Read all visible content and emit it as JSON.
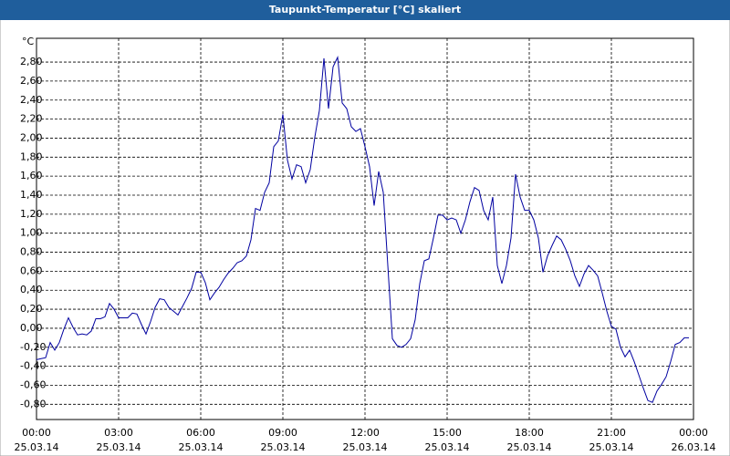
{
  "chart_data": {
    "type": "line",
    "title": "Taupunkt-Temperatur [°C] skaliert",
    "y_label": "°C",
    "x": [
      "25.03.14 00:00",
      "25.03.14 00:10",
      "25.03.14 00:20",
      "25.03.14 00:30",
      "25.03.14 00:40",
      "25.03.14 00:50",
      "25.03.14 01:00",
      "25.03.14 01:10",
      "25.03.14 01:20",
      "25.03.14 01:30",
      "25.03.14 01:40",
      "25.03.14 01:50",
      "25.03.14 02:00",
      "25.03.14 02:10",
      "25.03.14 02:20",
      "25.03.14 02:30",
      "25.03.14 02:40",
      "25.03.14 02:50",
      "25.03.14 03:00",
      "25.03.14 03:10",
      "25.03.14 03:20",
      "25.03.14 03:30",
      "25.03.14 03:40",
      "25.03.14 03:50",
      "25.03.14 04:00",
      "25.03.14 04:10",
      "25.03.14 04:20",
      "25.03.14 04:30",
      "25.03.14 04:40",
      "25.03.14 04:50",
      "25.03.14 05:00",
      "25.03.14 05:10",
      "25.03.14 05:20",
      "25.03.14 05:30",
      "25.03.14 05:40",
      "25.03.14 05:50",
      "25.03.14 06:00",
      "25.03.14 06:10",
      "25.03.14 06:20",
      "25.03.14 06:30",
      "25.03.14 06:40",
      "25.03.14 06:50",
      "25.03.14 07:00",
      "25.03.14 07:10",
      "25.03.14 07:20",
      "25.03.14 07:30",
      "25.03.14 07:40",
      "25.03.14 07:50",
      "25.03.14 08:00",
      "25.03.14 08:10",
      "25.03.14 08:20",
      "25.03.14 08:30",
      "25.03.14 08:40",
      "25.03.14 08:50",
      "25.03.14 09:00",
      "25.03.14 09:10",
      "25.03.14 09:20",
      "25.03.14 09:30",
      "25.03.14 09:40",
      "25.03.14 09:50",
      "25.03.14 10:00",
      "25.03.14 10:10",
      "25.03.14 10:20",
      "25.03.14 10:30",
      "25.03.14 10:40",
      "25.03.14 10:50",
      "25.03.14 11:00",
      "25.03.14 11:10",
      "25.03.14 11:20",
      "25.03.14 11:30",
      "25.03.14 11:40",
      "25.03.14 11:50",
      "25.03.14 12:00",
      "25.03.14 12:10",
      "25.03.14 12:20",
      "25.03.14 12:30",
      "25.03.14 12:40",
      "25.03.14 12:50",
      "25.03.14 13:00",
      "25.03.14 13:10",
      "25.03.14 13:20",
      "25.03.14 13:30",
      "25.03.14 13:40",
      "25.03.14 13:50",
      "25.03.14 14:00",
      "25.03.14 14:10",
      "25.03.14 14:20",
      "25.03.14 14:30",
      "25.03.14 14:40",
      "25.03.14 14:50",
      "25.03.14 15:00",
      "25.03.14 15:10",
      "25.03.14 15:20",
      "25.03.14 15:30",
      "25.03.14 15:40",
      "25.03.14 15:50",
      "25.03.14 16:00",
      "25.03.14 16:10",
      "25.03.14 16:20",
      "25.03.14 16:30",
      "25.03.14 16:40",
      "25.03.14 16:50",
      "25.03.14 17:00",
      "25.03.14 17:10",
      "25.03.14 17:20",
      "25.03.14 17:30",
      "25.03.14 17:40",
      "25.03.14 17:50",
      "25.03.14 18:00",
      "25.03.14 18:10",
      "25.03.14 18:20",
      "25.03.14 18:30",
      "25.03.14 18:40",
      "25.03.14 18:50",
      "25.03.14 19:00",
      "25.03.14 19:10",
      "25.03.14 19:20",
      "25.03.14 19:30",
      "25.03.14 19:40",
      "25.03.14 19:50",
      "25.03.14 20:00",
      "25.03.14 20:10",
      "25.03.14 20:20",
      "25.03.14 20:30",
      "25.03.14 20:40",
      "25.03.14 20:50",
      "25.03.14 21:00",
      "25.03.14 21:10",
      "25.03.14 21:20",
      "25.03.14 21:30",
      "25.03.14 21:40",
      "25.03.14 21:50",
      "25.03.14 22:00",
      "25.03.14 22:10",
      "25.03.14 22:20",
      "25.03.14 22:30",
      "25.03.14 22:40",
      "25.03.14 22:50",
      "25.03.14 23:00",
      "25.03.14 23:10",
      "25.03.14 23:20",
      "25.03.14 23:30",
      "25.03.14 23:40",
      "25.03.14 23:50"
    ],
    "series": [
      {
        "color": "#0000a0",
        "values": [
          -0.33,
          -0.32,
          -0.31,
          -0.15,
          -0.23,
          -0.15,
          -0.01,
          0.11,
          0.01,
          -0.07,
          -0.06,
          -0.07,
          -0.03,
          0.1,
          0.1,
          0.12,
          0.26,
          0.2,
          0.11,
          0.11,
          0.11,
          0.16,
          0.15,
          0.04,
          -0.06,
          0.07,
          0.22,
          0.31,
          0.3,
          0.22,
          0.18,
          0.14,
          0.23,
          0.32,
          0.42,
          0.59,
          0.59,
          0.48,
          0.3,
          0.37,
          0.43,
          0.51,
          0.58,
          0.63,
          0.69,
          0.71,
          0.76,
          0.93,
          1.26,
          1.24,
          1.43,
          1.53,
          1.91,
          1.97,
          2.25,
          1.77,
          1.57,
          1.72,
          1.7,
          1.53,
          1.67,
          2.01,
          2.29,
          2.84,
          2.31,
          2.75,
          2.85,
          2.37,
          2.31,
          2.12,
          2.07,
          2.1,
          1.91,
          1.7,
          1.29,
          1.65,
          1.43,
          0.66,
          -0.11,
          -0.18,
          -0.2,
          -0.17,
          -0.11,
          0.09,
          0.47,
          0.71,
          0.73,
          0.95,
          1.19,
          1.19,
          1.14,
          1.16,
          1.14,
          1.0,
          1.14,
          1.33,
          1.48,
          1.45,
          1.24,
          1.14,
          1.38,
          0.66,
          0.47,
          0.66,
          0.95,
          1.62,
          1.38,
          1.24,
          1.24,
          1.14,
          0.95,
          0.59,
          0.76,
          0.87,
          0.97,
          0.93,
          0.83,
          0.71,
          0.55,
          0.44,
          0.57,
          0.66,
          0.61,
          0.55,
          0.37,
          0.18,
          0.02,
          -0.01,
          -0.2,
          -0.3,
          -0.23,
          -0.35,
          -0.49,
          -0.63,
          -0.76,
          -0.78,
          -0.66,
          -0.59,
          -0.51,
          -0.35,
          -0.17,
          -0.15,
          -0.1,
          -0.1
        ]
      }
    ],
    "xlim": [
      "25.03.14 00:00",
      "26.03.14 00:00"
    ],
    "xticks": [
      {
        "value": "25.03.14 00:00",
        "label": [
          "00:00",
          "25.03.14"
        ]
      },
      {
        "value": "25.03.14 03:00",
        "label": [
          "03:00",
          "25.03.14"
        ]
      },
      {
        "value": "25.03.14 06:00",
        "label": [
          "06:00",
          "25.03.14"
        ]
      },
      {
        "value": "25.03.14 09:00",
        "label": [
          "09:00",
          "25.03.14"
        ]
      },
      {
        "value": "25.03.14 12:00",
        "label": [
          "12:00",
          "25.03.14"
        ]
      },
      {
        "value": "25.03.14 15:00",
        "label": [
          "15:00",
          "25.03.14"
        ]
      },
      {
        "value": "25.03.14 18:00",
        "label": [
          "18:00",
          "25.03.14"
        ]
      },
      {
        "value": "25.03.14 21:00",
        "label": [
          "21:00",
          "25.03.14"
        ]
      },
      {
        "value": "26.03.14 00:00",
        "label": [
          "00:00",
          "26.03.14"
        ]
      }
    ],
    "ylim": [
      -0.96,
      3.05
    ],
    "yticks": [
      {
        "value": -0.8,
        "label": "-0,80"
      },
      {
        "value": -0.6,
        "label": "-0,60"
      },
      {
        "value": -0.4,
        "label": "-0,40"
      },
      {
        "value": -0.2,
        "label": "-0,20"
      },
      {
        "value": 0,
        "label": "0,00"
      },
      {
        "value": 0.2,
        "label": "0,20"
      },
      {
        "value": 0.4,
        "label": "0,40"
      },
      {
        "value": 0.6,
        "label": "0,60"
      },
      {
        "value": 0.8,
        "label": "0,80"
      },
      {
        "value": 1.0,
        "label": "1,00"
      },
      {
        "value": 1.2,
        "label": "1,20"
      },
      {
        "value": 1.4,
        "label": "1,40"
      },
      {
        "value": 1.6,
        "label": "1,60"
      },
      {
        "value": 1.8,
        "label": "1,80"
      },
      {
        "value": 2.0,
        "label": "2,00"
      },
      {
        "value": 2.2,
        "label": "2,20"
      },
      {
        "value": 2.4,
        "label": "2,40"
      },
      {
        "value": 2.6,
        "label": "2,60"
      },
      {
        "value": 2.8,
        "label": "2,80"
      }
    ],
    "grid": true
  }
}
